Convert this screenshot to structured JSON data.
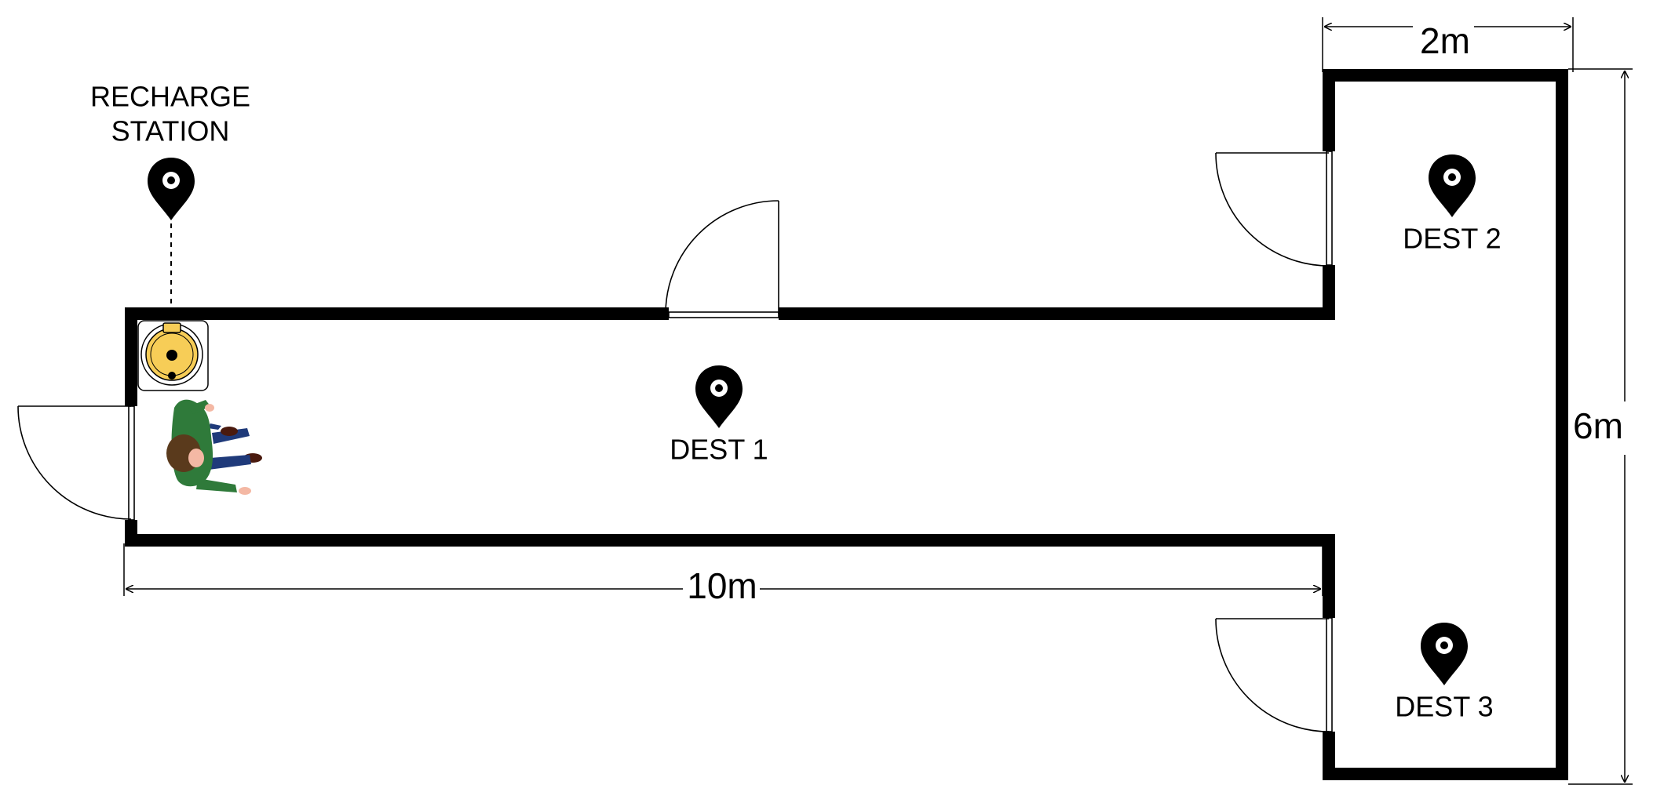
{
  "labels": {
    "recharge_line1": "RECHARGE",
    "recharge_line2": "STATION",
    "dest1": "DEST 1",
    "dest2": "DEST 2",
    "dest3": "DEST 3"
  },
  "dimensions": {
    "corridor_length": "10m",
    "wing_width": "2m",
    "wing_height": "6m"
  },
  "icons": {
    "marker": "map-pin-icon",
    "robot": "robot-vacuum-icon",
    "person": "walking-person-icon",
    "door": "door-swing-icon"
  },
  "colors": {
    "wall": "#000000",
    "robot_body": "#f7cd57",
    "person_shirt": "#2f7a3a",
    "person_pants": "#1f3a7a",
    "person_hair": "#5a3a1c",
    "skin": "#f4b8a4"
  }
}
